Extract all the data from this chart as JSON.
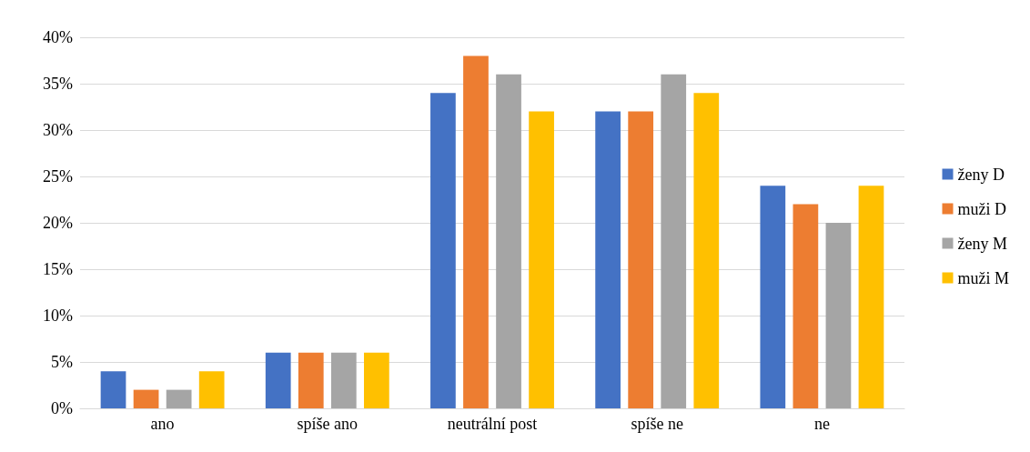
{
  "chart_data": {
    "type": "bar",
    "categories": [
      "ano",
      "spíše ano",
      "neutrální post",
      "spíše ne",
      "ne"
    ],
    "series": [
      {
        "name": "ženy D",
        "color": "#4472c4",
        "values": [
          4,
          6,
          34,
          32,
          24
        ]
      },
      {
        "name": "muži D",
        "color": "#ed7d31",
        "values": [
          2,
          6,
          38,
          32,
          22
        ]
      },
      {
        "name": "ženy M",
        "color": "#a5a5a5",
        "values": [
          2,
          6,
          36,
          36,
          20
        ]
      },
      {
        "name": "muži M",
        "color": "#ffc000",
        "values": [
          4,
          6,
          32,
          34,
          24
        ]
      }
    ],
    "ylim": [
      0,
      40
    ],
    "yticks": [
      {
        "value": 0,
        "label": "0%"
      },
      {
        "value": 5,
        "label": "5%"
      },
      {
        "value": 10,
        "label": "10%"
      },
      {
        "value": 15,
        "label": "15%"
      },
      {
        "value": 20,
        "label": "20%"
      },
      {
        "value": 25,
        "label": "25%"
      },
      {
        "value": 30,
        "label": "30%"
      },
      {
        "value": 35,
        "label": "35%"
      },
      {
        "value": 40,
        "label": "40%"
      }
    ],
    "grid": "y",
    "legend": "right"
  }
}
